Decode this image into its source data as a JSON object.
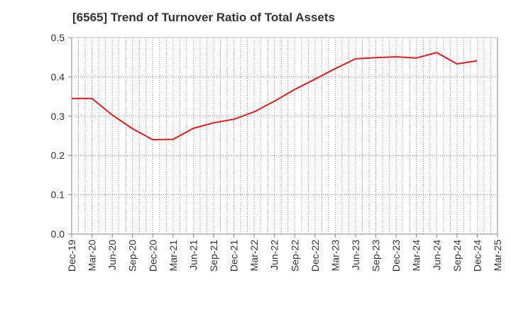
{
  "chart_data": {
    "type": "line",
    "title": "[6565]  Trend of Turnover Ratio of Total Assets",
    "xlabel": "",
    "ylabel": "",
    "ylim": [
      0,
      0.5
    ],
    "yticks": [
      "0.0",
      "0.1",
      "0.2",
      "0.3",
      "0.4",
      "0.5"
    ],
    "xticks": [
      "Dec-19",
      "Mar-20",
      "Jun-20",
      "Sep-20",
      "Dec-20",
      "Mar-21",
      "Jun-21",
      "Sep-21",
      "Dec-21",
      "Mar-22",
      "Jun-22",
      "Sep-22",
      "Dec-22",
      "Mar-23",
      "Jun-23",
      "Sep-23",
      "Dec-23",
      "Mar-24",
      "Jun-24",
      "Sep-24",
      "Dec-24",
      "Mar-25"
    ],
    "grid": "dotted vertical and horizontal",
    "legend": "none",
    "line_color": "#e31a1c",
    "series": [
      {
        "x": [
          "Dec-19",
          "Mar-20",
          "Jun-20",
          "Sep-20",
          "Dec-20",
          "Mar-21",
          "Jun-21",
          "Sep-21",
          "Dec-21",
          "Mar-22",
          "Jun-22",
          "Sep-22",
          "Dec-22",
          "Mar-23",
          "Jun-23",
          "Sep-23",
          "Dec-23",
          "Mar-24",
          "Jun-24",
          "Sep-24",
          "Dec-24"
        ],
        "values": [
          0.345,
          0.345,
          0.303,
          0.268,
          0.24,
          0.241,
          0.269,
          0.283,
          0.292,
          0.311,
          0.338,
          0.368,
          0.394,
          0.421,
          0.446,
          0.449,
          0.451,
          0.448,
          0.462,
          0.433,
          0.441
        ]
      }
    ]
  }
}
